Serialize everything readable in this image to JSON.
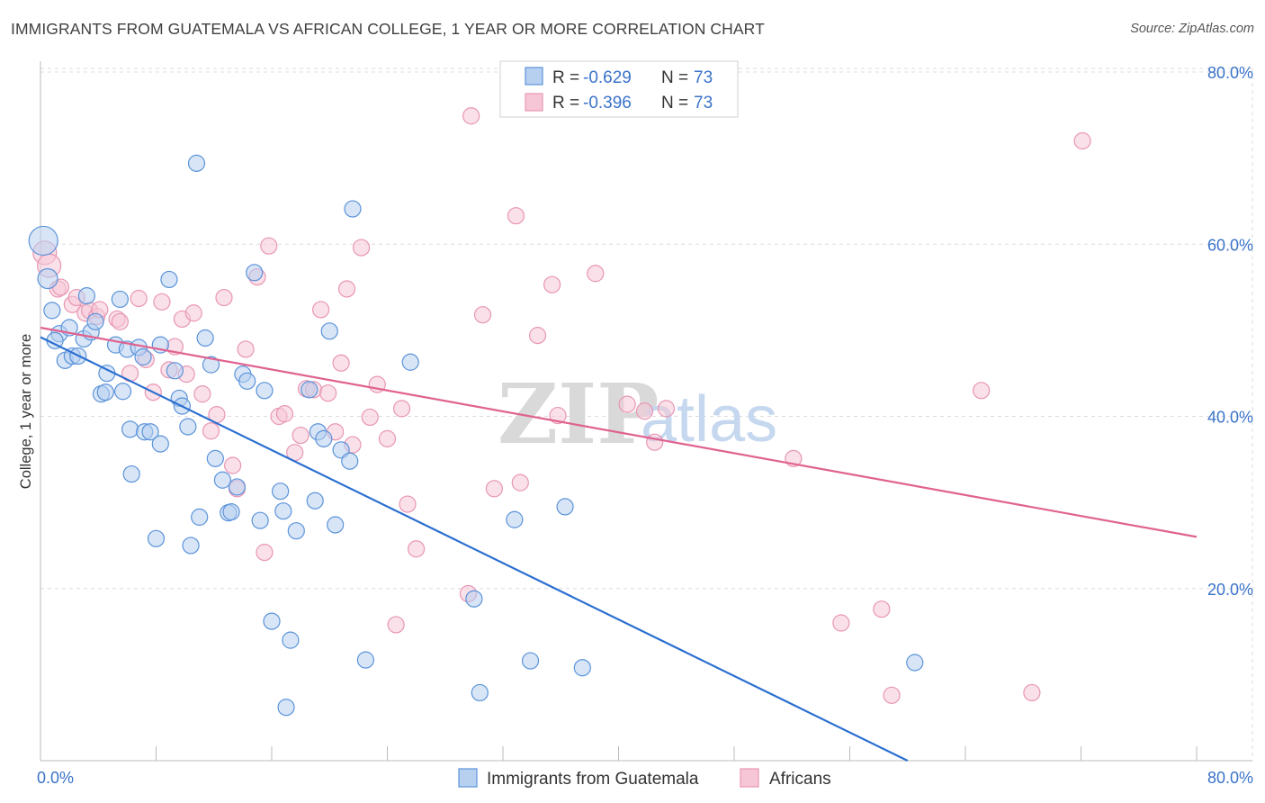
{
  "header": {
    "title": "IMMIGRANTS FROM GUATEMALA VS AFRICAN COLLEGE, 1 YEAR OR MORE CORRELATION CHART",
    "source": "Source: ZipAtlas.com"
  },
  "watermark": {
    "zip": "ZIP",
    "atlas": "atlas"
  },
  "legend": {
    "rows": [
      {
        "r_label": "R = ",
        "r_value": "-0.629",
        "n_label": "N = ",
        "n_value": "73"
      },
      {
        "r_label": "R = ",
        "r_value": "-0.396",
        "n_label": "N = ",
        "n_value": "73"
      }
    ]
  },
  "bottom_legend": [
    "Immigrants from Guatemala",
    "Africans"
  ],
  "colors": {
    "blue": "#5b93d9",
    "blue_fill": "#b7d0f0",
    "blue_line": "#2b6fd0",
    "pink": "#e896b4",
    "pink_fill": "#f6c6d6",
    "pink_line": "#e0628f",
    "tick": "#3a73c9",
    "grid": "#dcdcdc"
  },
  "chart_data": {
    "type": "scatter",
    "title": "IMMIGRANTS FROM GUATEMALA VS AFRICAN COLLEGE, 1 YEAR OR MORE CORRELATION CHART",
    "xlabel": "",
    "ylabel": "College, 1 year or more",
    "xlim": [
      0,
      80
    ],
    "ylim": [
      0,
      80
    ],
    "x_tick_labels": [
      "0.0%",
      "80.0%"
    ],
    "y_tick_labels": [
      "20.0%",
      "40.0%",
      "60.0%",
      "80.0%"
    ],
    "y_ticks": [
      20,
      40,
      60,
      80
    ],
    "grid": true,
    "series": [
      {
        "name": "Immigrants from Guatemala",
        "r": -0.629,
        "n": 73,
        "trend": [
          [
            0,
            49.2
          ],
          [
            60,
            0
          ]
        ],
        "points": [
          [
            0.2,
            60.4
          ],
          [
            0.5,
            56
          ],
          [
            0.8,
            52.3
          ],
          [
            1.3,
            49.6
          ],
          [
            1.0,
            48.8
          ],
          [
            1.7,
            46.5
          ],
          [
            2.2,
            47
          ],
          [
            2.0,
            50.3
          ],
          [
            3.0,
            49
          ],
          [
            3.2,
            54
          ],
          [
            3.5,
            49.8
          ],
          [
            3.8,
            51
          ],
          [
            4.6,
            45
          ],
          [
            4.2,
            42.6
          ],
          [
            4.5,
            42.8
          ],
          [
            5.2,
            48.3
          ],
          [
            5.5,
            53.6
          ],
          [
            5.7,
            42.9
          ],
          [
            6.0,
            47.8
          ],
          [
            6.2,
            38.5
          ],
          [
            6.3,
            33.3
          ],
          [
            6.8,
            48
          ],
          [
            7.1,
            46.9
          ],
          [
            7.2,
            38.2
          ],
          [
            7.6,
            38.2
          ],
          [
            8.3,
            36.8
          ],
          [
            8.0,
            25.8
          ],
          [
            8.9,
            55.9
          ],
          [
            9.3,
            45.3
          ],
          [
            9.6,
            42.1
          ],
          [
            9.8,
            41.2
          ],
          [
            10.2,
            38.8
          ],
          [
            10.4,
            25
          ],
          [
            10.8,
            69.4
          ],
          [
            11.0,
            28.3
          ],
          [
            11.4,
            49.1
          ],
          [
            11.8,
            46
          ],
          [
            12.1,
            35.1
          ],
          [
            12.6,
            32.6
          ],
          [
            13.0,
            28.8
          ],
          [
            13.2,
            28.9
          ],
          [
            13.6,
            31.8
          ],
          [
            14.0,
            44.9
          ],
          [
            14.3,
            44.1
          ],
          [
            14.8,
            56.7
          ],
          [
            15.2,
            27.9
          ],
          [
            15.5,
            43
          ],
          [
            16.0,
            16.2
          ],
          [
            16.6,
            31.3
          ],
          [
            16.8,
            29
          ],
          [
            17.3,
            14
          ],
          [
            17.7,
            26.7
          ],
          [
            18.6,
            43.1
          ],
          [
            19.0,
            30.2
          ],
          [
            19.2,
            38.2
          ],
          [
            19.6,
            37.4
          ],
          [
            20.0,
            49.9
          ],
          [
            20.4,
            27.4
          ],
          [
            20.8,
            36.1
          ],
          [
            21.4,
            34.8
          ],
          [
            21.6,
            64.1
          ],
          [
            22.5,
            11.7
          ],
          [
            25.6,
            46.3
          ],
          [
            30.0,
            18.8
          ],
          [
            30.4,
            7.9
          ],
          [
            32.8,
            28
          ],
          [
            33.9,
            11.6
          ],
          [
            36.3,
            29.5
          ],
          [
            37.5,
            10.8
          ],
          [
            60.5,
            11.4
          ],
          [
            2.6,
            47
          ],
          [
            8.3,
            48.3
          ],
          [
            17.0,
            6.2
          ]
        ]
      },
      {
        "name": "Africans",
        "r": -0.396,
        "n": 73,
        "trend": [
          [
            0,
            50.3
          ],
          [
            80,
            26
          ]
        ],
        "points": [
          [
            0.3,
            59
          ],
          [
            0.6,
            57.5
          ],
          [
            1.2,
            54.8
          ],
          [
            1.4,
            55
          ],
          [
            2.2,
            53
          ],
          [
            2.5,
            53.8
          ],
          [
            3.1,
            52
          ],
          [
            3.4,
            52.3
          ],
          [
            3.9,
            51.6
          ],
          [
            4.1,
            52.4
          ],
          [
            5.3,
            51.3
          ],
          [
            5.5,
            51
          ],
          [
            6.2,
            45
          ],
          [
            6.8,
            53.7
          ],
          [
            7.3,
            46.6
          ],
          [
            7.8,
            42.8
          ],
          [
            8.4,
            53.3
          ],
          [
            8.9,
            45.4
          ],
          [
            9.3,
            48.1
          ],
          [
            9.8,
            51.3
          ],
          [
            10.1,
            44.9
          ],
          [
            10.6,
            52
          ],
          [
            11.2,
            42.6
          ],
          [
            11.8,
            38.3
          ],
          [
            12.2,
            40.2
          ],
          [
            12.7,
            53.8
          ],
          [
            13.3,
            34.3
          ],
          [
            13.6,
            31.6
          ],
          [
            14.2,
            47.8
          ],
          [
            15.0,
            56.2
          ],
          [
            15.5,
            24.2
          ],
          [
            15.8,
            59.8
          ],
          [
            16.5,
            40
          ],
          [
            16.9,
            40.3
          ],
          [
            17.6,
            35.8
          ],
          [
            18.0,
            37.8
          ],
          [
            18.4,
            43.2
          ],
          [
            18.9,
            43.1
          ],
          [
            19.4,
            52.4
          ],
          [
            19.9,
            42.7
          ],
          [
            20.4,
            38.2
          ],
          [
            20.8,
            46.2
          ],
          [
            21.2,
            54.8
          ],
          [
            21.6,
            36.7
          ],
          [
            22.2,
            59.6
          ],
          [
            22.8,
            39.9
          ],
          [
            23.3,
            43.7
          ],
          [
            24.0,
            37.4
          ],
          [
            24.6,
            15.8
          ],
          [
            25.0,
            40.9
          ],
          [
            25.4,
            29.8
          ],
          [
            26.0,
            24.6
          ],
          [
            29.6,
            19.4
          ],
          [
            29.8,
            74.9
          ],
          [
            30.6,
            51.8
          ],
          [
            31.4,
            31.6
          ],
          [
            32.9,
            63.3
          ],
          [
            33.2,
            32.3
          ],
          [
            34.4,
            49.4
          ],
          [
            35.4,
            55.3
          ],
          [
            35.8,
            40.1
          ],
          [
            38.4,
            56.6
          ],
          [
            40.6,
            41.4
          ],
          [
            41.8,
            40.6
          ],
          [
            42.5,
            37
          ],
          [
            43.3,
            40.9
          ],
          [
            52.1,
            35.1
          ],
          [
            55.4,
            16
          ],
          [
            58.2,
            17.6
          ],
          [
            58.9,
            7.6
          ],
          [
            65.1,
            43
          ],
          [
            68.6,
            7.9
          ],
          [
            72.1,
            72
          ]
        ]
      }
    ]
  }
}
